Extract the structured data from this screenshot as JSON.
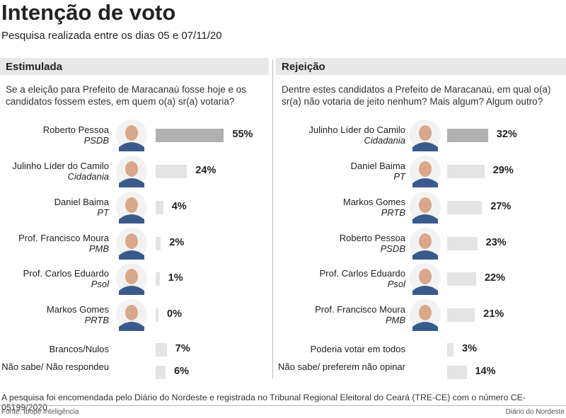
{
  "title": "Intenção de voto",
  "subtitle": "Pesquisa realizada entre os dias 05 e 07/11/20",
  "chart_data": [
    {
      "type": "bar",
      "title": "Estimulada",
      "question": "Se a eleição para Prefeito de Maracanaú fosse hoje\ne os candidatos fossem estes, em quem o(a) sr(a) votaria?",
      "categories": [
        "Roberto Pessoa",
        "Julinho Líder do Camilo",
        "Daniel Baima",
        "Prof. Francisco Moura",
        "Prof. Carlos Eduardo",
        "Markos Gomes",
        "Brancos/Nulos",
        "Não sabe/\nNão respondeu"
      ],
      "parties": [
        "PSDB",
        "Cidadania",
        "PT",
        "PMB",
        "Psol",
        "PRTB",
        null,
        null
      ],
      "values": [
        55,
        24,
        4,
        2,
        1,
        0,
        7,
        6
      ],
      "value_labels": [
        "55%",
        "24%",
        "4%",
        "2%",
        "1%",
        "0%",
        "7%",
        "6%"
      ],
      "colors": [
        "#b0b0b0",
        "#e4e4e4",
        "#e4e4e4",
        "#e4e4e4",
        "#e4e4e4",
        "#e4e4e4",
        "#e4e4e4",
        "#e4e4e4"
      ]
    },
    {
      "type": "bar",
      "title": "Rejeição",
      "question": "Dentre estes candidatos a Prefeito de Maracanaú, em qual\no(a) sr(a) não votaria de jeito nenhum?  Mais algum? Algum outro?",
      "categories": [
        "Julinho Líder do Camilo",
        "Daniel Baima",
        "Markos Gomes",
        "Roberto Pessoa",
        "Prof. Carlos Eduardo",
        "Prof. Francisco Moura",
        "Poderia votar em todos",
        "Não sabe/\npreferem não opinar"
      ],
      "parties": [
        "Cidadania",
        "PT",
        "PRTB",
        "PSDB",
        "Psol",
        "PMB",
        null,
        null
      ],
      "values": [
        32,
        29,
        27,
        23,
        22,
        21,
        3,
        14
      ],
      "value_labels": [
        "32%",
        "29%",
        "27%",
        "23%",
        "22%",
        "21%",
        "3%",
        "14%"
      ],
      "colors": [
        "#b0b0b0",
        "#e4e4e4",
        "#e4e4e4",
        "#e4e4e4",
        "#e4e4e4",
        "#e4e4e4",
        "#e4e4e4",
        "#e4e4e4"
      ]
    }
  ],
  "note": "A pesquisa foi encomendada pelo Diário do Nordeste e registrada no Tribunal Regional Eleitoral do Ceará (TRE-CE) com o número CE-05199/2020",
  "source": "Fonte: Ibope Inteligência",
  "credit": "Diário do Nordeste"
}
